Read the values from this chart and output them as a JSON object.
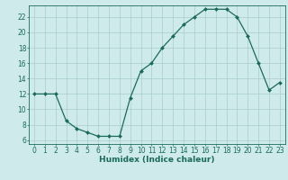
{
  "x": [
    0,
    1,
    2,
    3,
    4,
    5,
    6,
    7,
    8,
    9,
    10,
    11,
    12,
    13,
    14,
    15,
    16,
    17,
    18,
    19,
    20,
    21,
    22,
    23
  ],
  "y": [
    12,
    12,
    12,
    8.5,
    7.5,
    7,
    6.5,
    6.5,
    6.5,
    11.5,
    15,
    16,
    18,
    19.5,
    21,
    22,
    23,
    23,
    23,
    22,
    19.5,
    16,
    12.5,
    13.5
  ],
  "line_color": "#1a6b5a",
  "marker": "D",
  "marker_size": 2,
  "bg_color": "#ceeaea",
  "grid_color": "#a8cccc",
  "xlabel": "Humidex (Indice chaleur)",
  "xlim": [
    -0.5,
    23.5
  ],
  "ylim": [
    5.5,
    23.5
  ],
  "yticks": [
    6,
    8,
    10,
    12,
    14,
    16,
    18,
    20,
    22
  ],
  "xticks": [
    0,
    1,
    2,
    3,
    4,
    5,
    6,
    7,
    8,
    9,
    10,
    11,
    12,
    13,
    14,
    15,
    16,
    17,
    18,
    19,
    20,
    21,
    22,
    23
  ],
  "axis_color": "#1a6b5a",
  "label_fontsize": 6.5,
  "tick_fontsize": 5.5,
  "linewidth": 0.9
}
